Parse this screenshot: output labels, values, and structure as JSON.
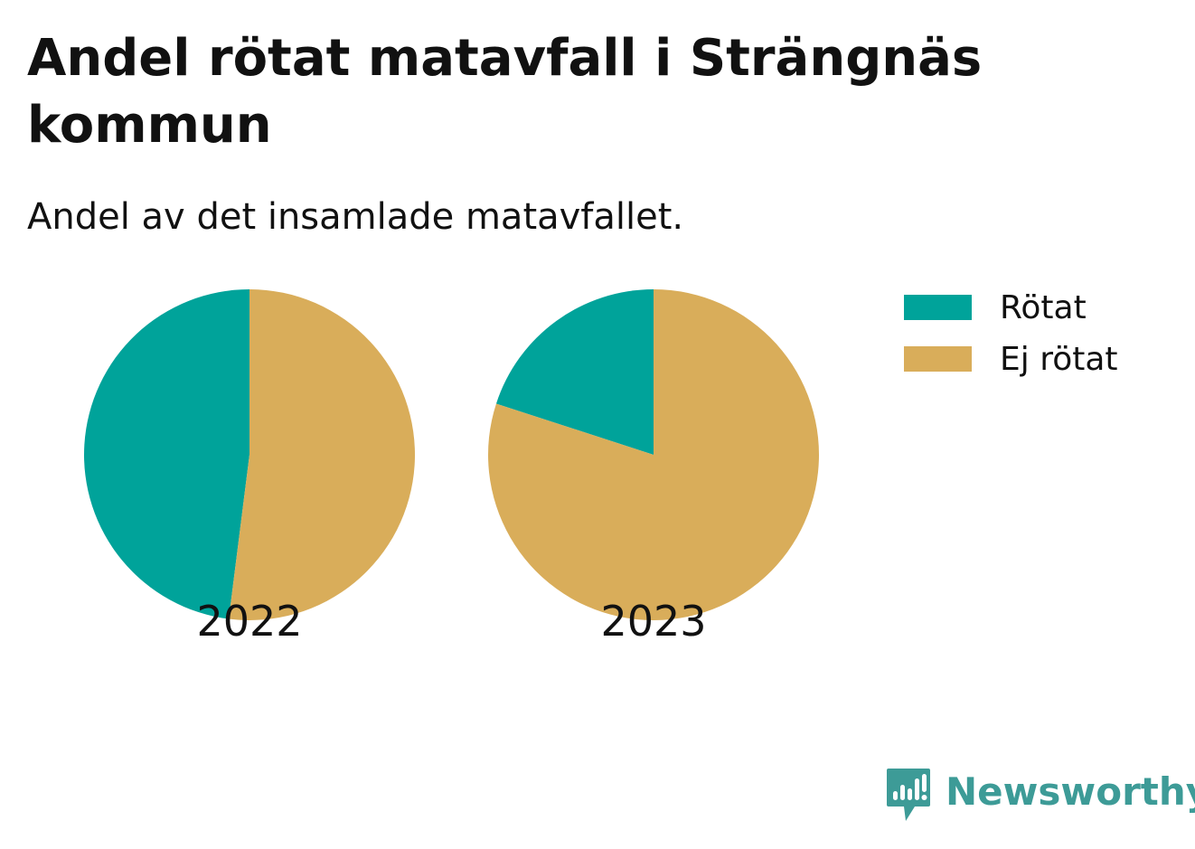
{
  "title": "Andel rötat matavfall i Strängnäs kommun",
  "subtitle": "Andel av det insamlade matavfallet.",
  "legend": [
    {
      "label": "Rötat",
      "color": "#00a39a"
    },
    {
      "label": "Ej rötat",
      "color": "#d9ad5a"
    }
  ],
  "chart_data": [
    {
      "type": "pie",
      "label": "2022",
      "slices": [
        {
          "name": "Rötat",
          "value": 48,
          "color": "#00a39a"
        },
        {
          "name": "Ej rötat",
          "value": 52,
          "color": "#d9ad5a"
        }
      ]
    },
    {
      "type": "pie",
      "label": "2023",
      "slices": [
        {
          "name": "Rötat",
          "value": 20,
          "color": "#00a39a"
        },
        {
          "name": "Ej rötat",
          "value": 80,
          "color": "#d9ad5a"
        }
      ]
    }
  ],
  "brand": {
    "name": "Newsworthy",
    "color": "#3d9b97",
    "icon": "newsworthy-logo-icon"
  }
}
